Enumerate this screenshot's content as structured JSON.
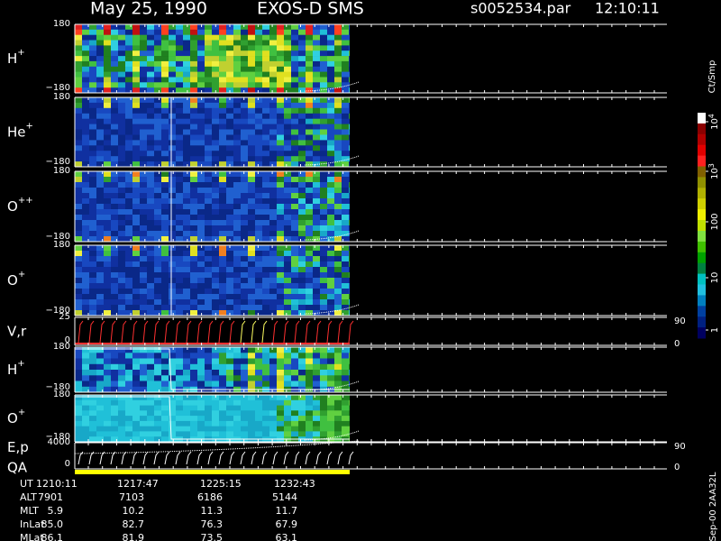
{
  "header": {
    "date": "May 25, 1990",
    "instrument": "EXOS-D SMS",
    "file": "s0052534.par",
    "time": "12:10:11"
  },
  "panels": [
    {
      "label": "H",
      "sup": "+",
      "top": "180",
      "bottom": "−180"
    },
    {
      "label": "He",
      "sup": "+",
      "top": "180",
      "bottom": "−180"
    },
    {
      "label": "O",
      "sup": "++",
      "top": "180",
      "bottom": "−180"
    },
    {
      "label": "O",
      "sup": "+",
      "top": "180",
      "bottom": "−180"
    },
    {
      "label": "V,r",
      "top": "25",
      "bottom": "0",
      "right_top": "90",
      "right_bottom": "0"
    },
    {
      "label": "H",
      "sup": "+",
      "top": "180",
      "bottom": "−180"
    },
    {
      "label": "O",
      "sup": "+",
      "top": "180",
      "bottom": "−180"
    },
    {
      "label": "E,p",
      "label2": "QA",
      "top": "4000",
      "bottom": "0",
      "right_top": "90",
      "right_bottom": "0"
    }
  ],
  "colorbar": {
    "unit": "Ct/Smp",
    "ticks": [
      {
        "base": "10",
        "exp": "4"
      },
      {
        "base": "10",
        "exp": "3"
      },
      {
        "base": "100"
      },
      {
        "base": "10"
      },
      {
        "base": "1"
      }
    ]
  },
  "table": {
    "rows": [
      [
        "UT",
        "1210:11",
        "1217:47",
        "1225:15",
        "1232:43"
      ],
      [
        "ALT",
        "7901",
        "7103",
        "6186",
        "5144"
      ],
      [
        "MLT",
        "5.9",
        "10.2",
        "11.3",
        "11.7"
      ],
      [
        "InLat",
        "85.0",
        "82.7",
        "76.3",
        "67.9"
      ],
      [
        "MLat",
        "86.1",
        "81.9",
        "73.5",
        "63.1"
      ]
    ]
  },
  "footer": "Sep-00  2AA32L"
}
